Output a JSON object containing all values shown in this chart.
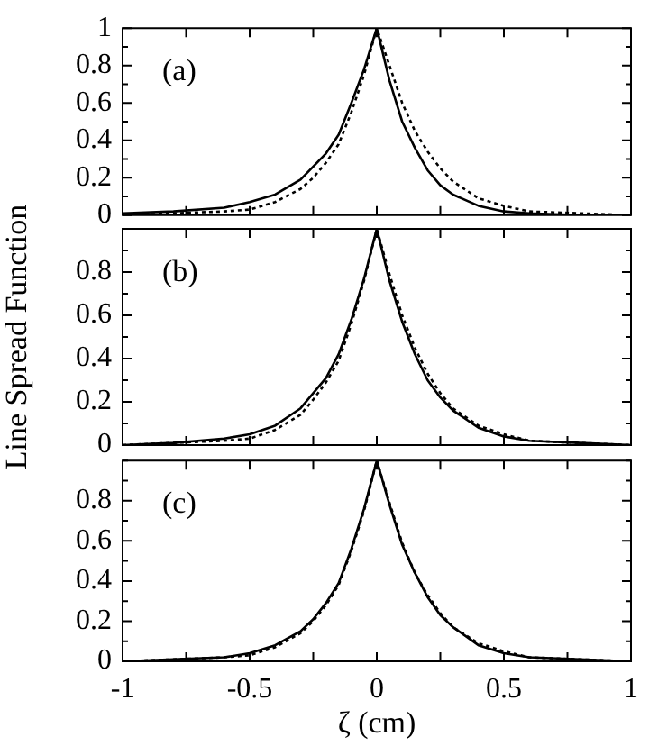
{
  "chart_data": [
    {
      "type": "line",
      "annotations": [
        "(a)"
      ],
      "x": [
        -1,
        -0.8,
        -0.6,
        -0.5,
        -0.4,
        -0.3,
        -0.25,
        -0.2,
        -0.15,
        -0.1,
        -0.05,
        0,
        0.05,
        0.1,
        0.15,
        0.2,
        0.25,
        0.3,
        0.4,
        0.5,
        0.6,
        0.8,
        1
      ],
      "series": [
        {
          "color": "#000000",
          "line_style": "solid",
          "values": [
            0.01,
            0.02,
            0.04,
            0.07,
            0.11,
            0.19,
            0.26,
            0.33,
            0.43,
            0.6,
            0.78,
            1,
            0.72,
            0.5,
            0.36,
            0.24,
            0.16,
            0.11,
            0.05,
            0.02,
            0.01,
            0,
            0
          ]
        },
        {
          "color": "#000000",
          "line_style": "dotted",
          "values": [
            0,
            0.01,
            0.02,
            0.03,
            0.07,
            0.14,
            0.2,
            0.28,
            0.38,
            0.55,
            0.75,
            1,
            0.8,
            0.6,
            0.45,
            0.34,
            0.25,
            0.18,
            0.09,
            0.05,
            0.02,
            0.01,
            0
          ]
        }
      ],
      "xlim": [
        -1,
        1
      ],
      "xticks": [
        {
          "value": -1,
          "label": null
        },
        {
          "value": -0.75,
          "label": null
        },
        {
          "value": -0.5,
          "label": null
        },
        {
          "value": -0.25,
          "label": null
        },
        {
          "value": 0,
          "label": null
        },
        {
          "value": 0.25,
          "label": null
        },
        {
          "value": 0.5,
          "label": null
        },
        {
          "value": 0.75,
          "label": null
        },
        {
          "value": 1,
          "label": null
        }
      ],
      "ylim": [
        0,
        1
      ],
      "yticks": [
        0,
        {
          "value": 0.1,
          "label": null
        },
        0.2,
        {
          "value": 0.3,
          "label": null
        },
        0.4,
        {
          "value": 0.5,
          "label": null
        },
        0.6,
        {
          "value": 0.7,
          "label": null
        },
        0.8,
        {
          "value": 0.9,
          "label": null
        },
        1
      ],
      "tick_labels": "y",
      "marker": "none",
      "legend": false
    },
    {
      "type": "line",
      "ylabel": "Line Spread Function",
      "annotations": [
        "(b)"
      ],
      "x": [
        -1,
        -0.8,
        -0.6,
        -0.5,
        -0.4,
        -0.3,
        -0.25,
        -0.2,
        -0.15,
        -0.1,
        -0.05,
        0,
        0.05,
        0.1,
        0.15,
        0.2,
        0.25,
        0.3,
        0.4,
        0.5,
        0.6,
        0.8,
        1
      ],
      "series": [
        {
          "color": "#000000",
          "line_style": "solid",
          "values": [
            0,
            0.01,
            0.03,
            0.05,
            0.09,
            0.17,
            0.24,
            0.31,
            0.42,
            0.58,
            0.77,
            1,
            0.76,
            0.57,
            0.42,
            0.3,
            0.22,
            0.16,
            0.08,
            0.04,
            0.02,
            0.01,
            0
          ]
        },
        {
          "color": "#000000",
          "line_style": "dotted",
          "values": [
            0,
            0.01,
            0.02,
            0.03,
            0.07,
            0.14,
            0.21,
            0.29,
            0.39,
            0.56,
            0.76,
            1,
            0.79,
            0.6,
            0.45,
            0.33,
            0.24,
            0.17,
            0.09,
            0.05,
            0.02,
            0.01,
            0
          ]
        }
      ],
      "xlim": [
        -1,
        1
      ],
      "xticks": [
        {
          "value": -1,
          "label": null
        },
        {
          "value": -0.75,
          "label": null
        },
        {
          "value": -0.5,
          "label": null
        },
        {
          "value": -0.25,
          "label": null
        },
        {
          "value": 0,
          "label": null
        },
        {
          "value": 0.25,
          "label": null
        },
        {
          "value": 0.5,
          "label": null
        },
        {
          "value": 0.75,
          "label": null
        },
        {
          "value": 1,
          "label": null
        }
      ],
      "ylim": [
        0,
        1
      ],
      "yticks": [
        0,
        {
          "value": 0.1,
          "label": null
        },
        0.2,
        {
          "value": 0.3,
          "label": null
        },
        0.4,
        {
          "value": 0.5,
          "label": null
        },
        0.6,
        {
          "value": 0.7,
          "label": null
        },
        0.8,
        {
          "value": 0.9,
          "label": null
        },
        {
          "value": 1,
          "label": null
        }
      ],
      "tick_labels": "y",
      "marker": "none",
      "legend": false
    },
    {
      "type": "line",
      "xlabel": "ζ (cm)",
      "annotations": [
        "(c)"
      ],
      "x": [
        -1,
        -0.8,
        -0.6,
        -0.5,
        -0.4,
        -0.3,
        -0.25,
        -0.2,
        -0.15,
        -0.1,
        -0.05,
        0,
        0.05,
        0.1,
        0.15,
        0.2,
        0.25,
        0.3,
        0.4,
        0.5,
        0.6,
        0.8,
        1
      ],
      "series": [
        {
          "color": "#000000",
          "line_style": "solid",
          "values": [
            0,
            0.01,
            0.02,
            0.04,
            0.08,
            0.15,
            0.21,
            0.29,
            0.39,
            0.56,
            0.76,
            1,
            0.78,
            0.58,
            0.44,
            0.32,
            0.23,
            0.17,
            0.08,
            0.04,
            0.02,
            0.01,
            0
          ]
        },
        {
          "color": "#000000",
          "line_style": "dotted",
          "values": [
            0,
            0.01,
            0.02,
            0.03,
            0.07,
            0.14,
            0.2,
            0.28,
            0.38,
            0.55,
            0.75,
            1,
            0.79,
            0.59,
            0.44,
            0.33,
            0.24,
            0.17,
            0.09,
            0.05,
            0.02,
            0.01,
            0
          ]
        }
      ],
      "xlim": [
        -1,
        1
      ],
      "xticks": [
        -1,
        {
          "value": -0.75,
          "label": null
        },
        -0.5,
        {
          "value": -0.25,
          "label": null
        },
        0,
        {
          "value": 0.25,
          "label": null
        },
        0.5,
        {
          "value": 0.75,
          "label": null
        },
        1
      ],
      "ylim": [
        0,
        1
      ],
      "yticks": [
        0,
        {
          "value": 0.1,
          "label": null
        },
        0.2,
        {
          "value": 0.3,
          "label": null
        },
        0.4,
        {
          "value": 0.5,
          "label": null
        },
        0.6,
        {
          "value": 0.7,
          "label": null
        },
        0.8,
        {
          "value": 0.9,
          "label": null
        },
        {
          "value": 1,
          "label": null
        }
      ],
      "marker": "none",
      "legend": false
    }
  ]
}
